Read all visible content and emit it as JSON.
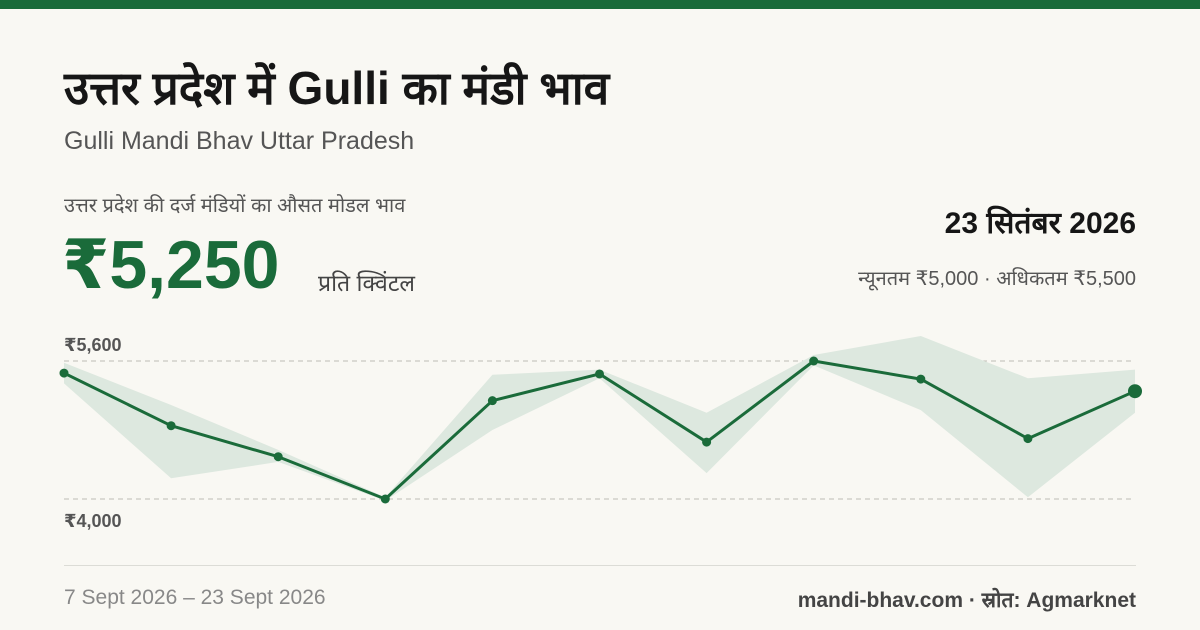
{
  "header": {
    "title": "उत्तर प्रदेश में Gulli का मंडी भाव",
    "subtitle": "Gulli Mandi Bhav Uttar Pradesh",
    "average_label": "उत्तर प्रदेश की दर्ज मंडियों का औसत मोडल भाव",
    "average_value": "₹5,250",
    "unit": "प्रति क्विंटल",
    "date": "23 सितंबर 2026",
    "range": "न्यूनतम ₹5,000 · अधिकतम ₹5,500"
  },
  "chart_data": {
    "type": "line",
    "values": [
      5460,
      4850,
      4490,
      4000,
      5140,
      5450,
      4660,
      5600,
      5390,
      4700,
      5250
    ],
    "min_values": [
      5340,
      4240,
      4430,
      3980,
      4800,
      5400,
      4300,
      5550,
      5030,
      4020,
      5000
    ],
    "max_values": [
      5580,
      5090,
      4570,
      4020,
      5440,
      5500,
      5000,
      5670,
      5890,
      5400,
      5500
    ],
    "color": "#1a6b3a",
    "band_color": "#dde8df",
    "ylim": [
      4000,
      5600
    ],
    "yticks": [
      {
        "value": 4000,
        "label": "₹4,000"
      },
      {
        "value": 5600,
        "label": "₹5,600"
      }
    ],
    "grid": true
  },
  "footer": {
    "date_range": "7 Sept 2026 – 23 Sept 2026",
    "source": "mandi-bhav.com · स्रोत: Agmarknet"
  }
}
